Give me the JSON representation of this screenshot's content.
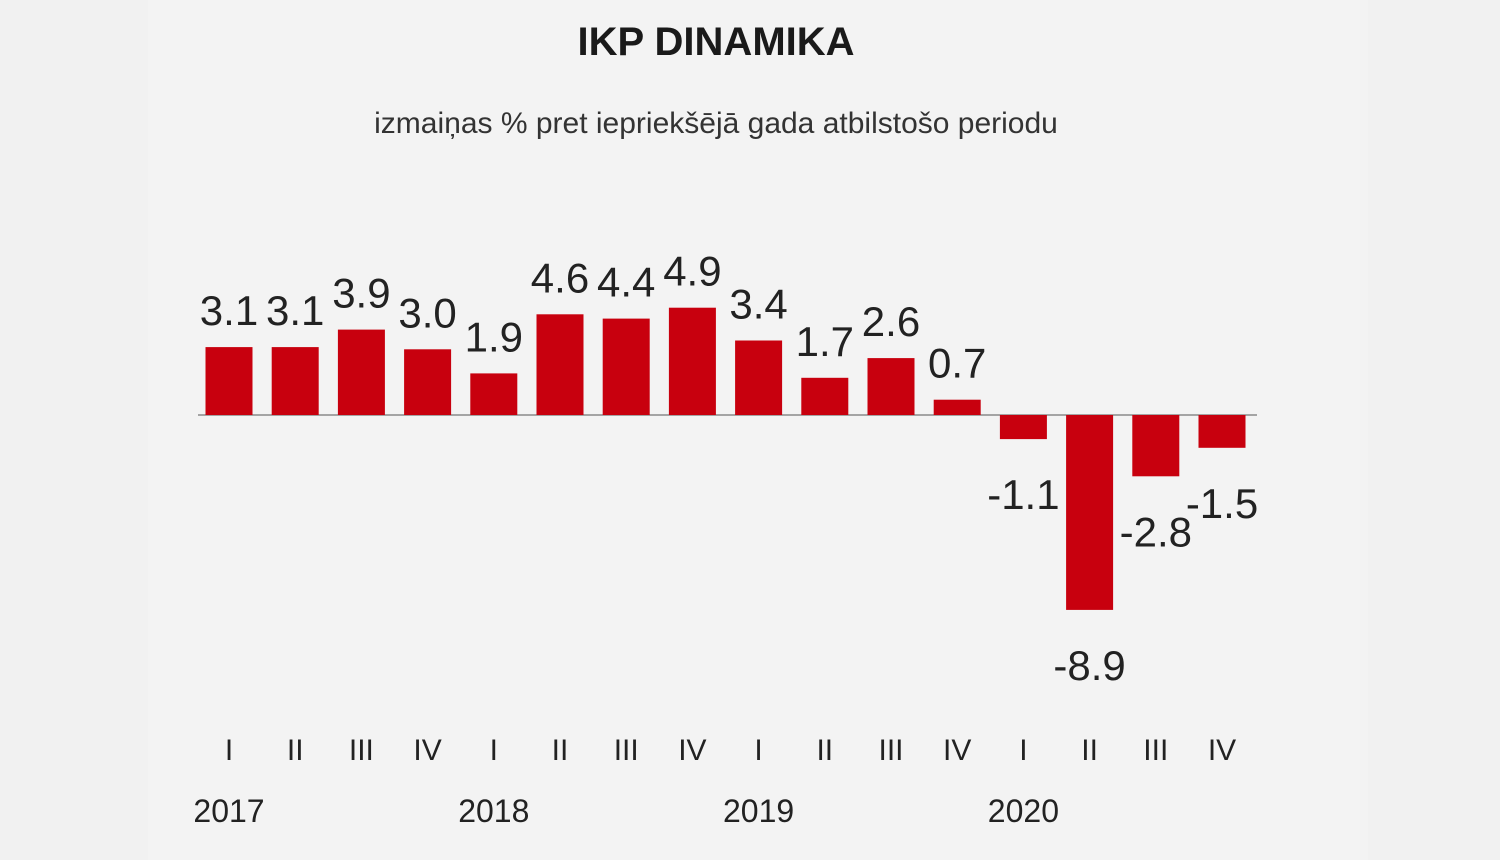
{
  "chart_data": {
    "type": "bar",
    "title": "IKP DINAMIKA",
    "subtitle": "izmaiņas % pret iepriekšējā gada atbilstošo periodu",
    "categories": [
      "I",
      "II",
      "III",
      "IV",
      "I",
      "II",
      "III",
      "IV",
      "I",
      "II",
      "III",
      "IV",
      "I",
      "II",
      "III",
      "IV"
    ],
    "values": [
      3.1,
      3.1,
      3.9,
      3.0,
      1.9,
      4.6,
      4.4,
      4.9,
      3.4,
      1.7,
      2.6,
      0.7,
      -1.1,
      -8.9,
      -2.8,
      -1.5
    ],
    "value_labels": [
      "3.1",
      "3.1",
      "3.9",
      "3.0",
      "1.9",
      "4.6",
      "4.4",
      "4.9",
      "3.4",
      "1.7",
      "2.6",
      "0.7",
      "-1.1",
      "-8.9",
      "-2.8",
      "-1.5"
    ],
    "years": [
      {
        "label": "2017",
        "first_index": 0
      },
      {
        "label": "2018",
        "first_index": 4
      },
      {
        "label": "2019",
        "first_index": 8
      },
      {
        "label": "2020",
        "first_index": 12
      }
    ],
    "bar_color": "#c8000e",
    "xlabel": "",
    "ylabel": "",
    "grid": false
  }
}
